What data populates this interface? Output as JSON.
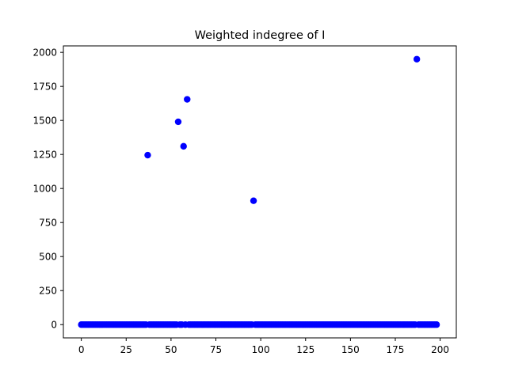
{
  "chart_data": {
    "type": "scatter",
    "title": "Weighted indegree of I",
    "xlabel": "",
    "ylabel": "",
    "xlim": [
      -10,
      209
    ],
    "ylim": [
      -97.5,
      2047.5
    ],
    "xticks": [
      0,
      25,
      50,
      75,
      100,
      125,
      150,
      175,
      200
    ],
    "yticks": [
      0,
      250,
      500,
      750,
      1000,
      1250,
      1500,
      1750,
      2000
    ],
    "grid": false,
    "marker_color": "#0000ff",
    "series": [
      {
        "name": "",
        "points_note": "199 points for x = 0..198; all zero except highlighted ones",
        "x_start": 0,
        "x_end": 198,
        "default_y": 0,
        "outliers": [
          {
            "x": 37,
            "y": 1245
          },
          {
            "x": 54,
            "y": 1490
          },
          {
            "x": 57,
            "y": 1310
          },
          {
            "x": 59,
            "y": 1655
          },
          {
            "x": 96,
            "y": 910
          },
          {
            "x": 187,
            "y": 1950
          }
        ]
      }
    ]
  }
}
